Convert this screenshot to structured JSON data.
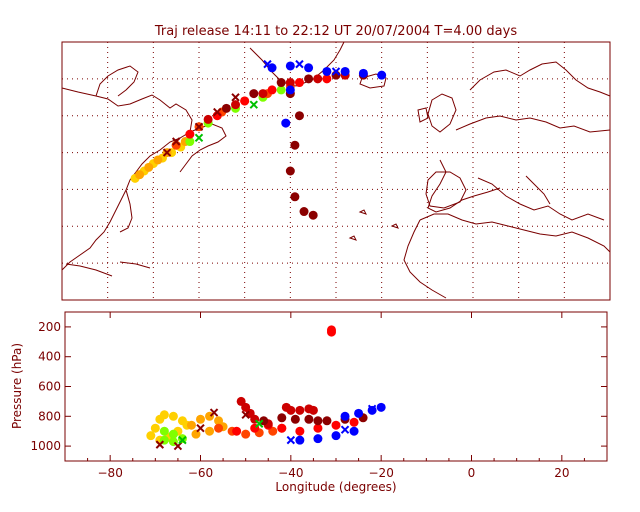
{
  "chart_data": [
    {
      "type": "scatter",
      "panel": "map",
      "title": "Traj release 14:11 to 22:12 UT 20/07/2004    T=4.00 days",
      "xlim": [
        -90,
        30
      ],
      "ylim": [
        0,
        70
      ],
      "grid": true,
      "series": [
        {
          "color": "#ffd000",
          "values": [
            [
              -74,
              33
            ],
            [
              -72,
              35
            ],
            [
              -70,
              37
            ],
            [
              -68,
              38.5
            ],
            [
              -66,
              40
            ],
            [
              -64,
              41.5
            ]
          ]
        },
        {
          "color": "#ffa500",
          "values": [
            [
              -73,
              34
            ],
            [
              -71,
              36
            ],
            [
              -69,
              38
            ],
            [
              -67,
              40
            ],
            [
              -65,
              42
            ],
            [
              -63,
              43
            ]
          ]
        },
        {
          "color": "#7fff00",
          "values": [
            [
              -62,
              43
            ],
            [
              -58,
              48
            ],
            [
              -52,
              52
            ],
            [
              -46,
              55
            ],
            [
              -42,
              57
            ]
          ]
        },
        {
          "color": "#ff4500",
          "values": [
            [
              -65,
              42
            ],
            [
              -60,
              47
            ],
            [
              -55,
              51
            ],
            [
              -50,
              54
            ],
            [
              -45,
              56
            ],
            [
              -40,
              58
            ]
          ]
        },
        {
          "color": "#ff0000",
          "values": [
            [
              -62,
              45
            ],
            [
              -56,
              50
            ],
            [
              -50,
              54
            ],
            [
              -44,
              57
            ],
            [
              -38,
              59
            ],
            [
              -32,
              60
            ]
          ]
        },
        {
          "color": "#cc0000",
          "values": [
            [
              -58,
              49
            ],
            [
              -52,
              53
            ],
            [
              -46,
              56
            ],
            [
              -40,
              59
            ],
            [
              -34,
              60
            ],
            [
              -28,
              61
            ]
          ]
        },
        {
          "color": "#8b0000",
          "values": [
            [
              -54,
              52
            ],
            [
              -48,
              56
            ],
            [
              -42,
              59
            ],
            [
              -36,
              60
            ],
            [
              -30,
              61
            ],
            [
              -24,
              61
            ],
            [
              -40,
              56
            ],
            [
              -38,
              50
            ],
            [
              -39,
              42
            ],
            [
              -40,
              35
            ],
            [
              -39,
              28
            ],
            [
              -37,
              24
            ],
            [
              -35,
              23
            ]
          ]
        },
        {
          "color": "#0000ff",
          "values": [
            [
              -44,
              63
            ],
            [
              -40,
              63.5
            ],
            [
              -36,
              63
            ],
            [
              -32,
              62
            ],
            [
              -28,
              62
            ],
            [
              -24,
              61.5
            ],
            [
              -20,
              61
            ],
            [
              -40,
              57
            ],
            [
              -41,
              48
            ]
          ]
        }
      ],
      "markers": [
        {
          "color": "#8b0000",
          "values": [
            [
              -67,
              40
            ],
            [
              -65,
              43
            ],
            [
              -60,
              47
            ],
            [
              -56,
              51
            ],
            [
              -52,
              55
            ]
          ]
        },
        {
          "color": "#00c000",
          "values": [
            [
              -60,
              44
            ],
            [
              -48,
              53
            ]
          ]
        },
        {
          "color": "#0000ff",
          "values": [
            [
              -45,
              64
            ],
            [
              -38,
              64
            ],
            [
              -30,
              62
            ]
          ]
        }
      ]
    },
    {
      "type": "scatter",
      "panel": "pressure",
      "xlabel": "Longitude  (degrees)",
      "ylabel": "Pressure  (hPa)",
      "xlim": [
        -90,
        30
      ],
      "ylim": [
        1100,
        100
      ],
      "xticks": [
        -80,
        -60,
        -40,
        -20,
        0,
        20
      ],
      "yticks": [
        200,
        400,
        600,
        800,
        1000
      ],
      "series": [
        {
          "color": "#ffd000",
          "values": [
            [
              -71,
              930
            ],
            [
              -70,
              880
            ],
            [
              -69,
              820
            ],
            [
              -68,
              790
            ],
            [
              -66,
              800
            ],
            [
              -64,
              830
            ],
            [
              -63,
              860
            ],
            [
              -65,
              900
            ],
            [
              -67,
              940
            ],
            [
              -69,
              960
            ]
          ]
        },
        {
          "color": "#ffa500",
          "values": [
            [
              -62,
              860
            ],
            [
              -60,
              820
            ],
            [
              -58,
              800
            ],
            [
              -56,
              830
            ],
            [
              -55,
              870
            ],
            [
              -58,
              900
            ],
            [
              -61,
              920
            ]
          ]
        },
        {
          "color": "#7fff00",
          "values": [
            [
              -68,
              900
            ],
            [
              -66,
              920
            ],
            [
              -64,
              950
            ],
            [
              -66,
              970
            ],
            [
              -68,
              960
            ]
          ]
        },
        {
          "color": "#ff4500",
          "values": [
            [
              -56,
              880
            ],
            [
              -53,
              900
            ],
            [
              -50,
              920
            ],
            [
              -47,
              910
            ],
            [
              -44,
              900
            ],
            [
              -42,
              880
            ]
          ]
        },
        {
          "color": "#ff0000",
          "values": [
            [
              -52,
              900
            ],
            [
              -48,
              880
            ],
            [
              -45,
              860
            ],
            [
              -42,
              880
            ],
            [
              -38,
              900
            ],
            [
              -34,
              880
            ],
            [
              -30,
              860
            ],
            [
              -26,
              840
            ],
            [
              -31,
              220
            ],
            [
              -31,
              235
            ]
          ]
        },
        {
          "color": "#cc0000",
          "values": [
            [
              -51,
              700
            ],
            [
              -50,
              740
            ],
            [
              -49,
              780
            ],
            [
              -48,
              820
            ],
            [
              -45,
              850
            ],
            [
              -41,
              740
            ],
            [
              -40,
              760
            ],
            [
              -38,
              760
            ],
            [
              -36,
              750
            ],
            [
              -35,
              760
            ]
          ]
        },
        {
          "color": "#8b0000",
          "values": [
            [
              -46,
              830
            ],
            [
              -42,
              810
            ],
            [
              -39,
              820
            ],
            [
              -36,
              820
            ],
            [
              -34,
              830
            ],
            [
              -32,
              830
            ],
            [
              -28,
              820
            ],
            [
              -24,
              810
            ]
          ]
        },
        {
          "color": "#0000ff",
          "values": [
            [
              -28,
              800
            ],
            [
              -25,
              780
            ],
            [
              -22,
              760
            ],
            [
              -20,
              740
            ],
            [
              -38,
              960
            ],
            [
              -34,
              950
            ],
            [
              -30,
              930
            ],
            [
              -26,
              900
            ]
          ]
        }
      ],
      "markers": [
        {
          "color": "#8b0000",
          "values": [
            [
              -69,
              990
            ],
            [
              -65,
              1000
            ],
            [
              -60,
              880
            ],
            [
              -57,
              775
            ],
            [
              -50,
              790
            ]
          ]
        },
        {
          "color": "#00c000",
          "values": [
            [
              -47,
              850
            ],
            [
              -64,
              960
            ]
          ]
        },
        {
          "color": "#0000ff",
          "values": [
            [
              -40,
              960
            ],
            [
              -28,
              890
            ],
            [
              -22,
              750
            ]
          ]
        }
      ]
    }
  ]
}
